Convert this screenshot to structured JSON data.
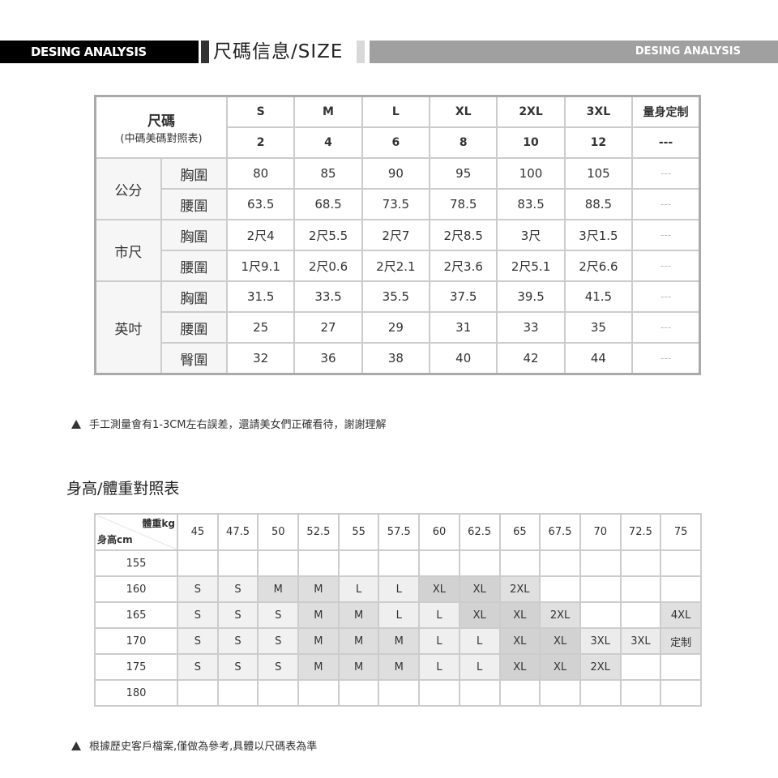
{
  "header": {
    "left_label": "DESING ANALYSIS",
    "title": "尺碼信息/SIZE",
    "right_label": "DESING ANALYSIS"
  },
  "size_table": {
    "corner_title": "尺碼",
    "corner_subtitle": "(中碼美碼對照表)",
    "sizes": [
      "S",
      "M",
      "L",
      "XL",
      "2XL",
      "3XL",
      "量身定制"
    ],
    "us_sizes": [
      "2",
      "4",
      "6",
      "8",
      "10",
      "12",
      "---"
    ],
    "groups": [
      {
        "unit": "公分",
        "rows": [
          {
            "label": "胸圍",
            "values": [
              "80",
              "85",
              "90",
              "95",
              "100",
              "105",
              "---"
            ]
          },
          {
            "label": "腰圍",
            "values": [
              "63.5",
              "68.5",
              "73.5",
              "78.5",
              "83.5",
              "88.5",
              "---"
            ]
          }
        ]
      },
      {
        "unit": "市尺",
        "rows": [
          {
            "label": "胸圍",
            "values": [
              "2尺4",
              "2尺5.5",
              "2尺7",
              "2尺8.5",
              "3尺",
              "3尺1.5",
              "---"
            ]
          },
          {
            "label": "腰圍",
            "values": [
              "1尺9.1",
              "2尺0.6",
              "2尺2.1",
              "2尺3.6",
              "2尺5.1",
              "2尺6.6",
              "---"
            ]
          }
        ]
      },
      {
        "unit": "英吋",
        "rows": [
          {
            "label": "胸圍",
            "values": [
              "31.5",
              "33.5",
              "35.5",
              "37.5",
              "39.5",
              "41.5",
              "---"
            ]
          },
          {
            "label": "腰圍",
            "values": [
              "25",
              "27",
              "29",
              "31",
              "33",
              "35",
              "---"
            ]
          },
          {
            "label": "臀圍",
            "values": [
              "32",
              "36",
              "38",
              "40",
              "42",
              "44",
              "---"
            ]
          }
        ]
      }
    ]
  },
  "note1": "手工測量會有1-3CM左右誤差，還請美女們正確看待，謝謝理解",
  "hw_table": {
    "title": "身高/體重對照表",
    "weight_label": "體重kg",
    "height_label": "身高cm",
    "weights": [
      "45",
      "47.5",
      "50",
      "52.5",
      "55",
      "57.5",
      "60",
      "62.5",
      "65",
      "67.5",
      "70",
      "72.5",
      "75"
    ],
    "rows": [
      {
        "height": "155",
        "cells": [
          "",
          "",
          "",
          "",
          "",
          "",
          "",
          "",
          "",
          "",
          "",
          "",
          ""
        ]
      },
      {
        "height": "160",
        "cells": [
          "S",
          "S",
          "M",
          "M",
          "L",
          "L",
          "XL",
          "XL",
          "2XL",
          "",
          "",
          "",
          ""
        ]
      },
      {
        "height": "165",
        "cells": [
          "S",
          "S",
          "S",
          "M",
          "M",
          "L",
          "L",
          "XL",
          "XL",
          "2XL",
          "",
          "",
          "4XL"
        ]
      },
      {
        "height": "170",
        "cells": [
          "S",
          "S",
          "S",
          "M",
          "M",
          "M",
          "L",
          "L",
          "XL",
          "XL",
          "3XL",
          "3XL",
          "定制"
        ]
      },
      {
        "height": "175",
        "cells": [
          "S",
          "S",
          "S",
          "M",
          "M",
          "M",
          "L",
          "L",
          "XL",
          "XL",
          "2XL",
          "",
          ""
        ]
      },
      {
        "height": "180",
        "cells": [
          "",
          "",
          "",
          "",
          "",
          "",
          "",
          "",
          "",
          "",
          "",
          "",
          ""
        ]
      }
    ],
    "shades": {
      "S": "#f1f1f1",
      "M": "#dedede",
      "L": "#efefef",
      "XL": "#d2d2d2",
      "2XL": "#e0e0e0",
      "3XL": "#ececec",
      "4XL": "#e0e0e0",
      "定制": "#e0e0e0"
    }
  },
  "note2": "根據歷史客戶檔案,僅做為參考,具體以尺碼表為準"
}
